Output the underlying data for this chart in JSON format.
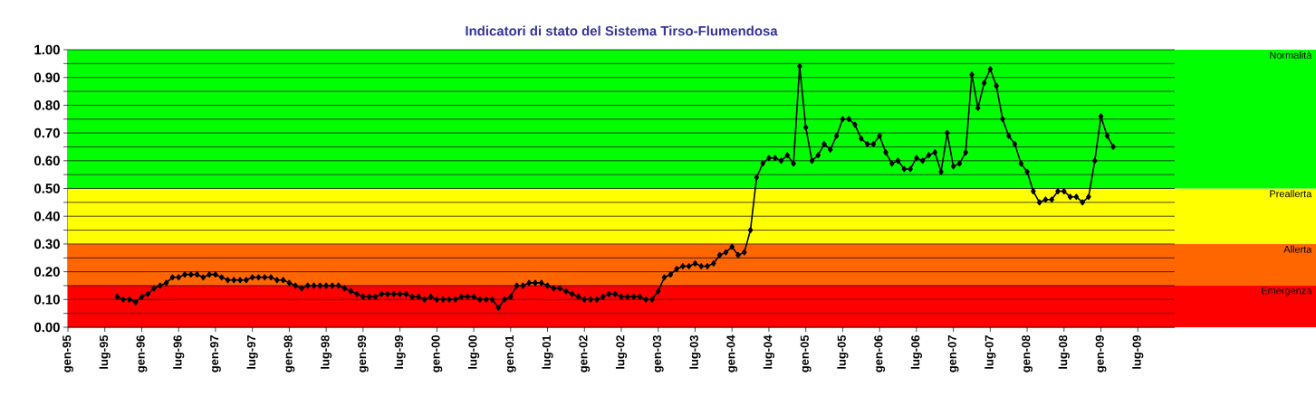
{
  "chart_data": {
    "type": "line",
    "title": "Indicatori di stato del Sistema Tirso-Flumendosa",
    "x": [
      "1995-09",
      "1995-10",
      "1995-11",
      "1995-12",
      "1996-01",
      "1996-02",
      "1996-03",
      "1996-04",
      "1996-05",
      "1996-06",
      "1996-07",
      "1996-08",
      "1996-09",
      "1996-10",
      "1996-11",
      "1996-12",
      "1997-01",
      "1997-02",
      "1997-03",
      "1997-04",
      "1997-05",
      "1997-06",
      "1997-07",
      "1997-08",
      "1997-09",
      "1997-10",
      "1997-11",
      "1997-12",
      "1998-01",
      "1998-02",
      "1998-03",
      "1998-04",
      "1998-05",
      "1998-06",
      "1998-07",
      "1998-08",
      "1998-09",
      "1998-10",
      "1998-11",
      "1998-12",
      "1999-01",
      "1999-02",
      "1999-03",
      "1999-04",
      "1999-05",
      "1999-06",
      "1999-07",
      "1999-08",
      "1999-09",
      "1999-10",
      "1999-11",
      "1999-12",
      "2000-01",
      "2000-02",
      "2000-03",
      "2000-04",
      "2000-05",
      "2000-06",
      "2000-07",
      "2000-08",
      "2000-09",
      "2000-10",
      "2000-11",
      "2000-12",
      "2001-01",
      "2001-02",
      "2001-03",
      "2001-04",
      "2001-05",
      "2001-06",
      "2001-07",
      "2001-08",
      "2001-09",
      "2001-10",
      "2001-11",
      "2001-12",
      "2002-01",
      "2002-02",
      "2002-03",
      "2002-04",
      "2002-05",
      "2002-06",
      "2002-07",
      "2002-08",
      "2002-09",
      "2002-10",
      "2002-11",
      "2002-12",
      "2003-01",
      "2003-02",
      "2003-03",
      "2003-04",
      "2003-05",
      "2003-06",
      "2003-07",
      "2003-08",
      "2003-09",
      "2003-10",
      "2003-11",
      "2003-12",
      "2004-01",
      "2004-02",
      "2004-03",
      "2004-04",
      "2004-05",
      "2004-06",
      "2004-07",
      "2004-08",
      "2004-09",
      "2004-10",
      "2004-11",
      "2004-12",
      "2005-01",
      "2005-02",
      "2005-03",
      "2005-04",
      "2005-05",
      "2005-06",
      "2005-07",
      "2005-08",
      "2005-09",
      "2005-10",
      "2005-11",
      "2005-12",
      "2006-01",
      "2006-02",
      "2006-03",
      "2006-04",
      "2006-05",
      "2006-06",
      "2006-07",
      "2006-08",
      "2006-09",
      "2006-10",
      "2006-11",
      "2006-12",
      "2007-01",
      "2007-02",
      "2007-03",
      "2007-04",
      "2007-05",
      "2007-06",
      "2007-07",
      "2007-08",
      "2007-09",
      "2007-10",
      "2007-11",
      "2007-12",
      "2008-01",
      "2008-02",
      "2008-03",
      "2008-04",
      "2008-05",
      "2008-06",
      "2008-07",
      "2008-08",
      "2008-09",
      "2008-10",
      "2008-11",
      "2008-12",
      "2009-01",
      "2009-02",
      "2009-03"
    ],
    "values": [
      0.11,
      0.1,
      0.1,
      0.09,
      0.11,
      0.12,
      0.14,
      0.15,
      0.16,
      0.18,
      0.18,
      0.19,
      0.19,
      0.19,
      0.18,
      0.19,
      0.19,
      0.18,
      0.17,
      0.17,
      0.17,
      0.17,
      0.18,
      0.18,
      0.18,
      0.18,
      0.17,
      0.17,
      0.16,
      0.15,
      0.14,
      0.15,
      0.15,
      0.15,
      0.15,
      0.15,
      0.15,
      0.14,
      0.13,
      0.12,
      0.11,
      0.11,
      0.11,
      0.12,
      0.12,
      0.12,
      0.12,
      0.12,
      0.11,
      0.11,
      0.1,
      0.11,
      0.1,
      0.1,
      0.1,
      0.1,
      0.11,
      0.11,
      0.11,
      0.1,
      0.1,
      0.1,
      0.07,
      0.1,
      0.11,
      0.15,
      0.15,
      0.16,
      0.16,
      0.16,
      0.15,
      0.14,
      0.14,
      0.13,
      0.12,
      0.11,
      0.1,
      0.1,
      0.1,
      0.11,
      0.12,
      0.12,
      0.11,
      0.11,
      0.11,
      0.11,
      0.1,
      0.1,
      0.13,
      0.18,
      0.19,
      0.21,
      0.22,
      0.22,
      0.23,
      0.22,
      0.22,
      0.23,
      0.26,
      0.27,
      0.29,
      0.26,
      0.27,
      0.35,
      0.54,
      0.59,
      0.61,
      0.61,
      0.6,
      0.62,
      0.59,
      0.94,
      0.72,
      0.6,
      0.62,
      0.66,
      0.64,
      0.69,
      0.75,
      0.75,
      0.73,
      0.68,
      0.66,
      0.66,
      0.69,
      0.63,
      0.59,
      0.6,
      0.57,
      0.57,
      0.61,
      0.6,
      0.62,
      0.63,
      0.56,
      0.7,
      0.58,
      0.59,
      0.63,
      0.91,
      0.79,
      0.88,
      0.93,
      0.87,
      0.75,
      0.69,
      0.66,
      0.59,
      0.56,
      0.49,
      0.45,
      0.46,
      0.46,
      0.49,
      0.49,
      0.47,
      0.47,
      0.45,
      0.47,
      0.6,
      0.76,
      0.69,
      0.65
    ],
    "color": "#000000",
    "marker": "diamond",
    "line_style": "solid",
    "grid": "y",
    "xlim": [
      "1995-01",
      "2010-01"
    ],
    "xticks": [
      {
        "value": "1995-01",
        "label": "gen-95"
      },
      {
        "value": "1995-07",
        "label": "lug-95"
      },
      {
        "value": "1996-01",
        "label": "gen-96"
      },
      {
        "value": "1996-07",
        "label": "lug-96"
      },
      {
        "value": "1997-01",
        "label": "gen-97"
      },
      {
        "value": "1997-07",
        "label": "lug-97"
      },
      {
        "value": "1998-01",
        "label": "gen-98"
      },
      {
        "value": "1998-07",
        "label": "lug-98"
      },
      {
        "value": "1999-01",
        "label": "gen-99"
      },
      {
        "value": "1999-07",
        "label": "lug-99"
      },
      {
        "value": "2000-01",
        "label": "gen-00"
      },
      {
        "value": "2000-07",
        "label": "lug-00"
      },
      {
        "value": "2001-01",
        "label": "gen-01"
      },
      {
        "value": "2001-07",
        "label": "lug-01"
      },
      {
        "value": "2002-01",
        "label": "gen-02"
      },
      {
        "value": "2002-07",
        "label": "lug-02"
      },
      {
        "value": "2003-01",
        "label": "gen-03"
      },
      {
        "value": "2003-07",
        "label": "lug-03"
      },
      {
        "value": "2004-01",
        "label": "gen-04"
      },
      {
        "value": "2004-07",
        "label": "lug-04"
      },
      {
        "value": "2005-01",
        "label": "gen-05"
      },
      {
        "value": "2005-07",
        "label": "lug-05"
      },
      {
        "value": "2006-01",
        "label": "gen-06"
      },
      {
        "value": "2006-07",
        "label": "lug-06"
      },
      {
        "value": "2007-01",
        "label": "gen-07"
      },
      {
        "value": "2007-07",
        "label": "lug-07"
      },
      {
        "value": "2008-01",
        "label": "gen-08"
      },
      {
        "value": "2008-07",
        "label": "lug-08"
      },
      {
        "value": "2009-01",
        "label": "gen-09"
      },
      {
        "value": "2009-07",
        "label": "lug-09"
      }
    ],
    "ylim": [
      0,
      1
    ],
    "yticks": [
      {
        "value": 0,
        "label": "0.00"
      },
      {
        "value": 0.05,
        "label": null
      },
      {
        "value": 0.1,
        "label": "0.10"
      },
      {
        "value": 0.15,
        "label": null
      },
      {
        "value": 0.2,
        "label": "0.20"
      },
      {
        "value": 0.25,
        "label": null
      },
      {
        "value": 0.3,
        "label": "0.30"
      },
      {
        "value": 0.35,
        "label": null
      },
      {
        "value": 0.4,
        "label": "0.40"
      },
      {
        "value": 0.45,
        "label": null
      },
      {
        "value": 0.5,
        "label": "0.50"
      },
      {
        "value": 0.55,
        "label": null
      },
      {
        "value": 0.6,
        "label": "0.60"
      },
      {
        "value": 0.65,
        "label": null
      },
      {
        "value": 0.7,
        "label": "0.70"
      },
      {
        "value": 0.75,
        "label": null
      },
      {
        "value": 0.8,
        "label": "0.80"
      },
      {
        "value": 0.85,
        "label": null
      },
      {
        "value": 0.9,
        "label": "0.90"
      },
      {
        "value": 0.95,
        "label": null
      },
      {
        "value": 1,
        "label": "1.00"
      }
    ],
    "bands": [
      {
        "axis": "y",
        "from": 0,
        "to": 0.15,
        "label": "Emergenza",
        "color": "#ff0000"
      },
      {
        "axis": "y",
        "from": 0.15,
        "to": 0.3,
        "label": "Allerta",
        "color": "#ff6600"
      },
      {
        "axis": "y",
        "from": 0.3,
        "to": 0.5,
        "label": "Preallerta",
        "color": "#ffff00"
      },
      {
        "axis": "y",
        "from": 0.5,
        "to": 1,
        "label": "Normalità",
        "color": "#00ff00"
      }
    ]
  }
}
